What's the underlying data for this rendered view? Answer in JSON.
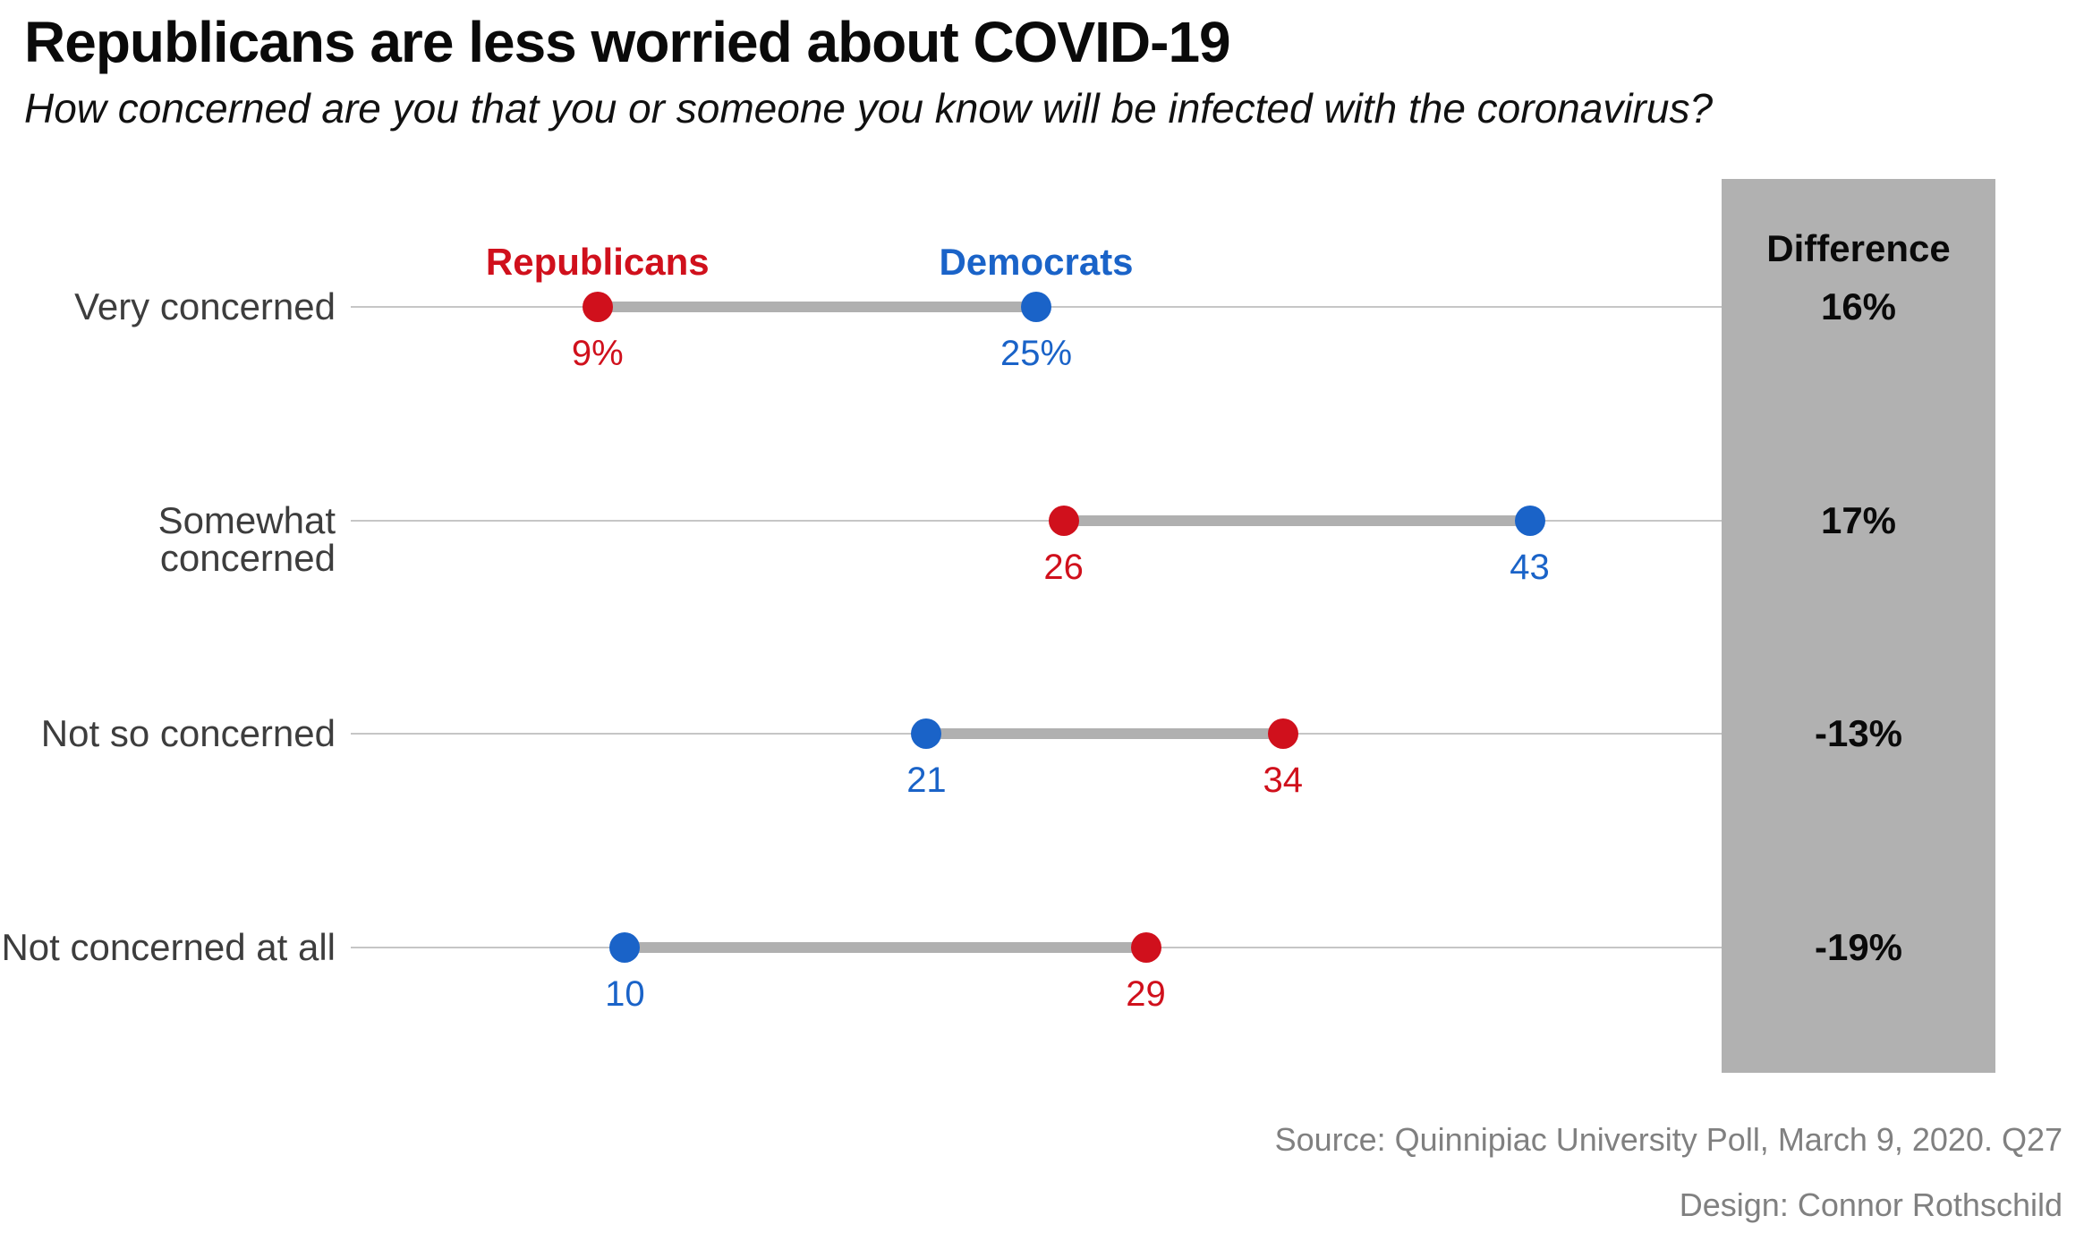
{
  "header": {
    "title": "Republicans are less worried about COVID-19",
    "subtitle": "How concerned are you that you or someone you know will be infected with the coronavirus?"
  },
  "legend": {
    "republicans": "Republicans",
    "democrats": "Democrats"
  },
  "difference_panel": {
    "header": "Difference",
    "values": [
      "16%",
      "17%",
      "-13%",
      "-19%"
    ]
  },
  "chart_data": {
    "type": "dumbbell",
    "title": "Republicans are less worried about COVID-19",
    "subtitle": "How concerned are you that you or someone you know will be infected with the coronavirus?",
    "categories": [
      "Very concerned",
      "Somewhat concerned",
      "Not so concerned",
      "Not concerned at all"
    ],
    "series": [
      {
        "name": "Republicans",
        "color": "#d0101c",
        "values": [
          9,
          26,
          34,
          29
        ],
        "labels": [
          "9%",
          "26",
          "34",
          "29"
        ]
      },
      {
        "name": "Democrats",
        "color": "#1a63c8",
        "values": [
          25,
          43,
          21,
          10
        ],
        "labels": [
          "25%",
          "43",
          "21",
          "10"
        ]
      }
    ],
    "differences": [
      16,
      17,
      -13,
      -19
    ],
    "difference_labels": [
      "16%",
      "17%",
      "-13%",
      "-19%"
    ],
    "xlim": [
      0,
      50
    ],
    "grid": true,
    "legend_position": "above-first-row",
    "connector_color": "#b0b0b0",
    "gridline_color": "#c6c6c6",
    "difference_box_color": "#b1b1b1"
  },
  "footer": {
    "source": "Source: Quinnipiac University Poll, March 9, 2020. Q27",
    "design": "Design: Connor Rothschild"
  }
}
